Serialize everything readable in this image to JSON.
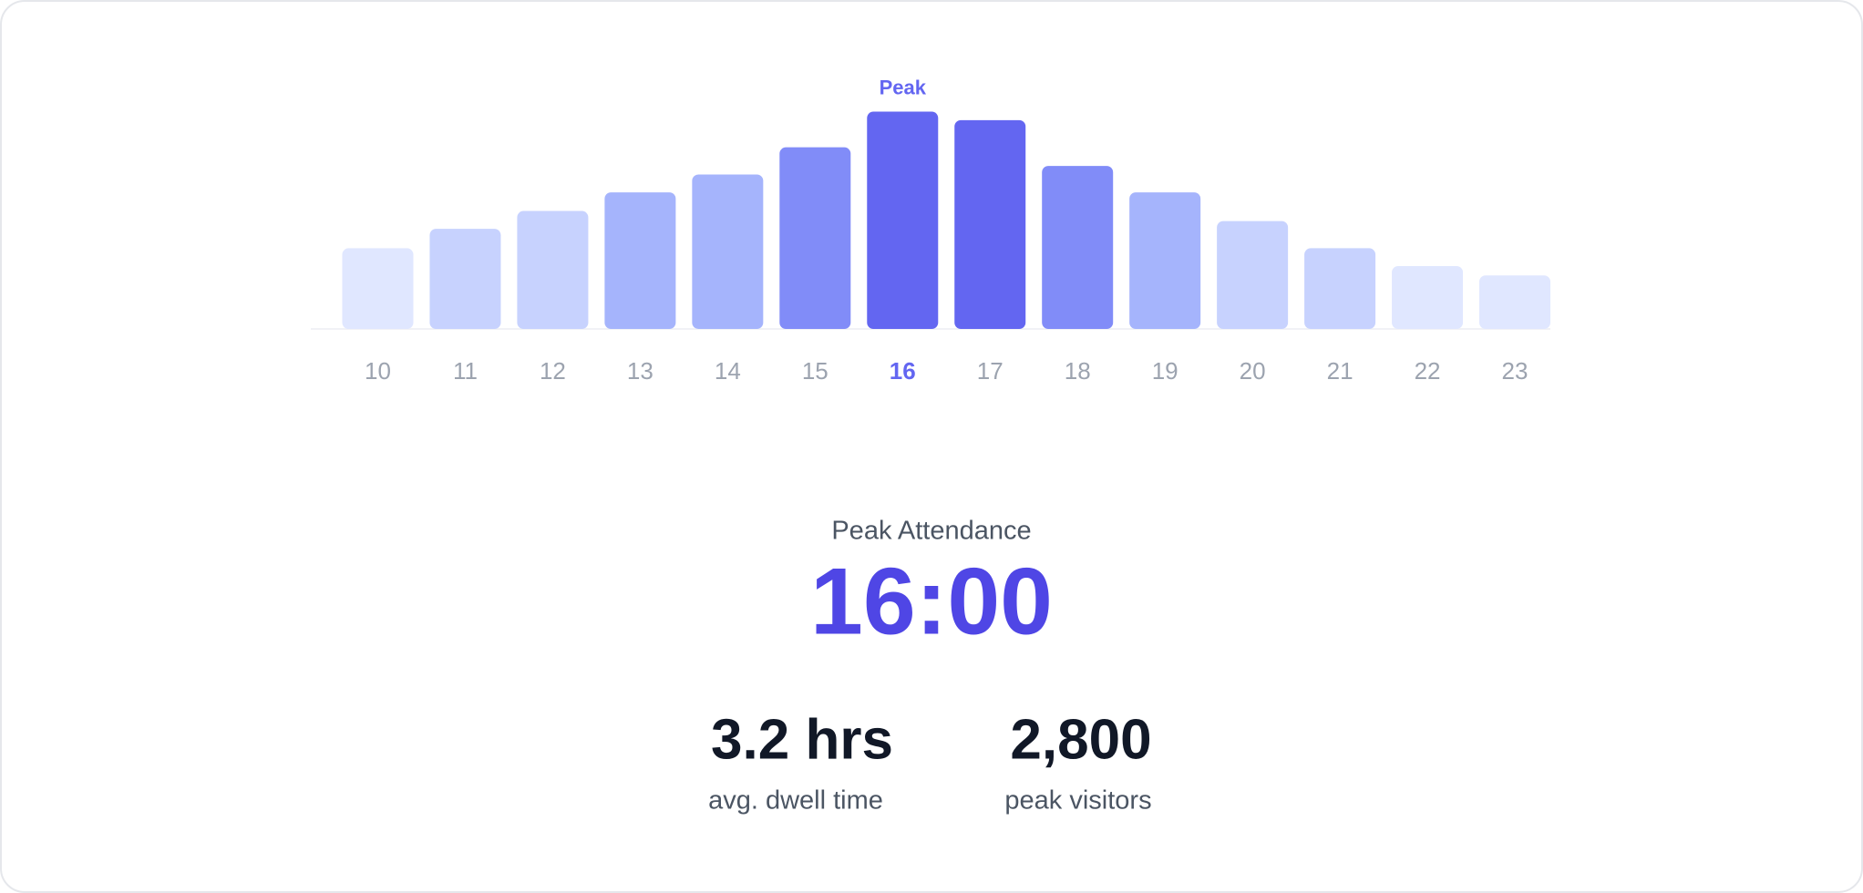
{
  "chart_data": {
    "type": "bar",
    "categories": [
      "10",
      "11",
      "12",
      "13",
      "14",
      "15",
      "16",
      "17",
      "18",
      "19",
      "20",
      "21",
      "22",
      "23"
    ],
    "values": [
      1040,
      1290,
      1520,
      1760,
      1990,
      2340,
      2800,
      2690,
      2100,
      1760,
      1390,
      1040,
      810,
      690
    ],
    "colors": [
      "#e0e7ff",
      "#c7d2fe",
      "#c7d2fe",
      "#a5b4fc",
      "#a5b4fc",
      "#818cf8",
      "#6366f1",
      "#6366f1",
      "#818cf8",
      "#a5b4fc",
      "#c7d2fe",
      "#c7d2fe",
      "#e0e7ff",
      "#e0e7ff"
    ],
    "ylim": [
      0,
      2800
    ],
    "annotation": {
      "text": "Peak",
      "category": "16",
      "color": "#6366f1"
    }
  },
  "summary": {
    "title": "Peak Attendance",
    "time": "16:00",
    "stats": [
      {
        "value": "3.2 hrs",
        "label": "avg. dwell time"
      },
      {
        "value": "2,800",
        "label": "peak visitors"
      }
    ]
  }
}
